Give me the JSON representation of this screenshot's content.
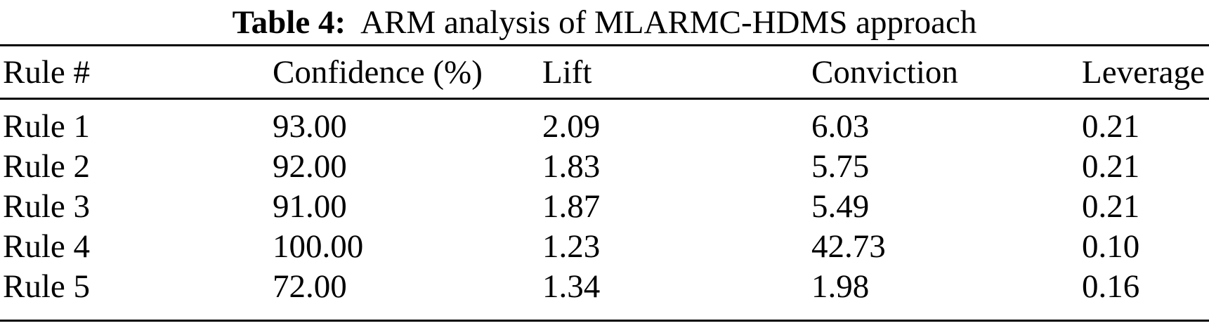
{
  "caption": {
    "label": "Table 4:",
    "title": "ARM analysis of MLARMC-HDMS approach"
  },
  "table": {
    "columns": [
      "Rule #",
      "Confidence (%)",
      "Lift",
      "Conviction",
      "Leverage"
    ],
    "rows": [
      {
        "rule": "Rule 1",
        "confidence": "93.00",
        "lift": "2.09",
        "conviction": "6.03",
        "leverage": "0.21"
      },
      {
        "rule": "Rule 2",
        "confidence": "92.00",
        "lift": "1.83",
        "conviction": "5.75",
        "leverage": "0.21"
      },
      {
        "rule": "Rule 3",
        "confidence": "91.00",
        "lift": "1.87",
        "conviction": "5.49",
        "leverage": "0.21"
      },
      {
        "rule": "Rule 4",
        "confidence": "100.00",
        "lift": "1.23",
        "conviction": "42.73",
        "leverage": "0.10"
      },
      {
        "rule": "Rule 5",
        "confidence": "72.00",
        "lift": "1.34",
        "conviction": "1.98",
        "leverage": "0.16"
      }
    ]
  },
  "colors": {
    "text": "#000000",
    "background": "#ffffff",
    "rule": "#000000"
  }
}
